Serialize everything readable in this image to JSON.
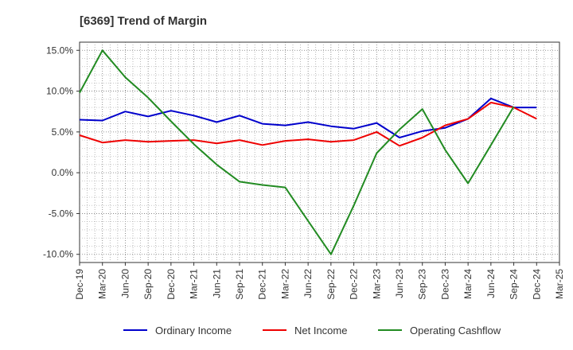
{
  "chart_data": {
    "type": "line",
    "title": "[6369]  Trend of Margin",
    "xlabel": "",
    "ylabel": "",
    "categories": [
      "Dec-19",
      "Mar-20",
      "Jun-20",
      "Sep-20",
      "Dec-20",
      "Mar-21",
      "Jun-21",
      "Sep-21",
      "Dec-21",
      "Mar-22",
      "Jun-22",
      "Sep-22",
      "Dec-22",
      "Mar-23",
      "Jun-23",
      "Sep-23",
      "Dec-23",
      "Mar-24",
      "Jun-24",
      "Sep-24",
      "Dec-24",
      "Mar-25"
    ],
    "ylim": [
      -11,
      16
    ],
    "yticks": [
      15,
      10,
      5,
      0,
      -5,
      -10
    ],
    "ytick_labels": [
      "15.0%",
      "10.0%",
      "5.0%",
      "0.0%",
      "-5.0%",
      "-10.0%"
    ],
    "grid": true,
    "legend_position": "bottom",
    "series": [
      {
        "name": "Ordinary Income",
        "color": "#0000cc",
        "values": [
          6.5,
          6.4,
          7.5,
          6.9,
          7.6,
          7.0,
          6.2,
          7.0,
          6.0,
          5.8,
          6.2,
          5.7,
          5.4,
          6.1,
          4.3,
          5.1,
          5.5,
          6.6,
          9.1,
          8.0,
          8.0,
          null
        ]
      },
      {
        "name": "Net Income",
        "color": "#ee0000",
        "values": [
          4.6,
          3.7,
          4.0,
          3.8,
          3.9,
          4.0,
          3.6,
          4.0,
          3.4,
          3.9,
          4.1,
          3.8,
          4.0,
          5.0,
          3.3,
          4.3,
          5.8,
          6.6,
          8.6,
          8.0,
          6.6,
          null
        ]
      },
      {
        "name": "Operating Cashflow",
        "color": "#228b22",
        "values": [
          9.8,
          15.0,
          11.7,
          9.2,
          6.3,
          3.5,
          1.0,
          -1.1,
          -1.5,
          -1.8,
          -5.9,
          -10.0,
          -4.0,
          2.4,
          5.3,
          7.8,
          2.8,
          -1.3,
          3.4,
          8.1,
          null,
          null
        ]
      }
    ]
  }
}
